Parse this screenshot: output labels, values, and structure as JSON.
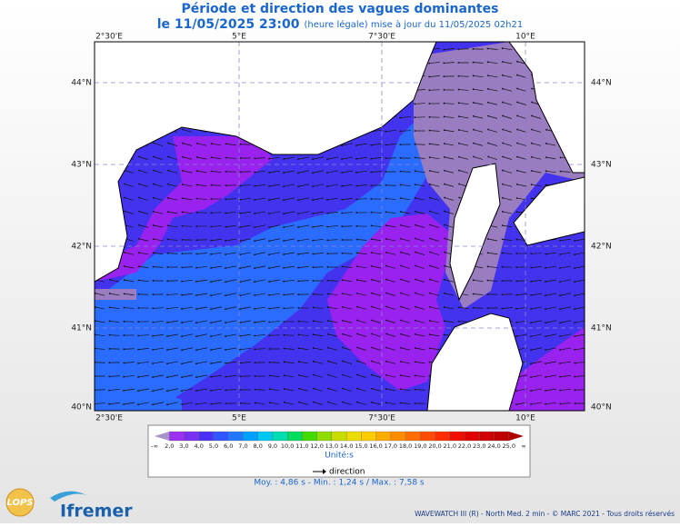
{
  "header": {
    "title": "Période et direction des vagues dominantes",
    "date": "le 11/05/2025 23:00",
    "note": "(heure légale) mise à jour du 11/05/2025 02h21"
  },
  "map": {
    "lon_labels": [
      "2°30'E",
      "5°E",
      "7°30'E",
      "10°E"
    ],
    "lat_labels": [
      "44°N",
      "43°N",
      "42°N",
      "41°N",
      "40°N"
    ]
  },
  "legend": {
    "labels": [
      "-∞",
      "2,0",
      "3,0",
      "4,0",
      "5,0",
      "6,0",
      "7,0",
      "8,0",
      "9,0",
      "10,0",
      "11,0",
      "12,0",
      "13,0",
      "14,0",
      "15,0",
      "16,0",
      "17,0",
      "18,0",
      "19,0",
      "20,0",
      "21,0",
      "22,0",
      "23,0",
      "24,0",
      "25,0",
      "∞"
    ],
    "colors": [
      "#a890c8",
      "#9b30f0",
      "#7a30f0",
      "#4a30f5",
      "#3355ff",
      "#2277ff",
      "#00a0ff",
      "#00c8f0",
      "#00dcb0",
      "#00dc60",
      "#40dc00",
      "#90dc00",
      "#c8dc00",
      "#ecdc00",
      "#ffcc00",
      "#ffaa00",
      "#ff8c00",
      "#ff6c00",
      "#ff4c00",
      "#ff2c00",
      "#f01000",
      "#e00000",
      "#d00000",
      "#c00000",
      "#b00000"
    ],
    "unit": "Unité:s",
    "direction": "direction",
    "stats": "Moy. : 4,86 s  -  Min. : 1,24 s / Max. : 7,58 s"
  },
  "footer": {
    "credit": "WAVEWATCH III (R) - North Med. 2 min - © MARC 2021 - Tous droits réservés",
    "logo1": "LOPS",
    "logo2": "Ifremer"
  }
}
